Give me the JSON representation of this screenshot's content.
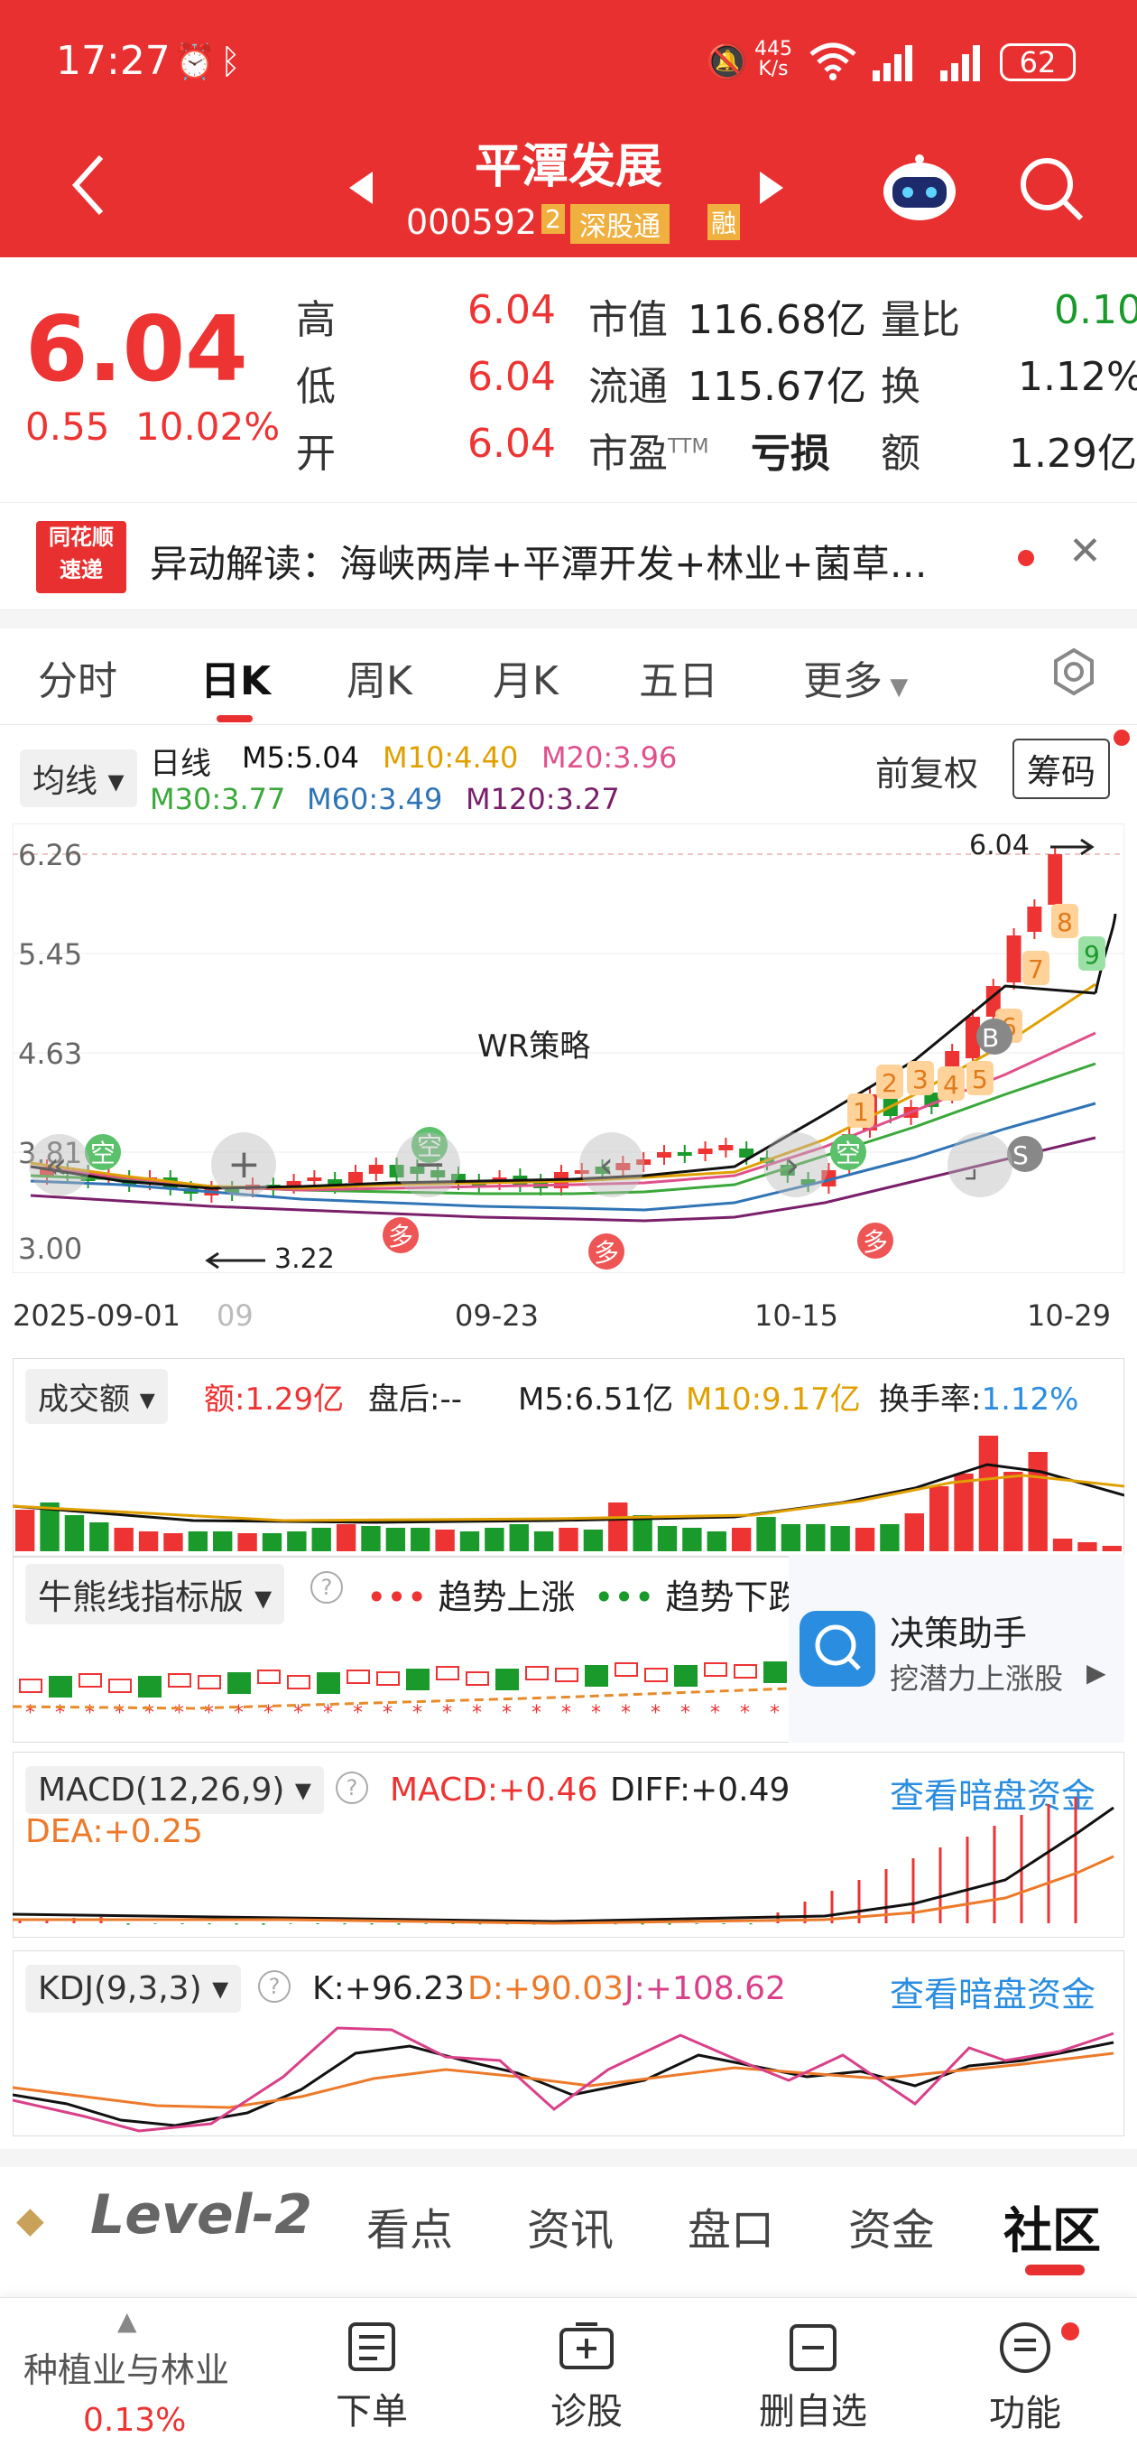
{
  "status_bar": {
    "time": "17:27",
    "speed_top": "445",
    "speed_bottom": "K/s",
    "battery": "62"
  },
  "header": {
    "title": "平潭发展",
    "code": "000592",
    "tag_left": "2",
    "tag": "深股通",
    "tag_right": "融"
  },
  "quote": {
    "price": "6.04",
    "change": "0.55",
    "change_pct": "10.02%",
    "rows": [
      {
        "l1": "高",
        "v1": "6.04",
        "l2": "市值",
        "v2": "116.68亿",
        "l3": "量比",
        "v3": "0.10"
      },
      {
        "l1": "低",
        "v1": "6.04",
        "l2": "流通",
        "v2": "115.67亿",
        "l3": "换",
        "v3": "1.12%"
      },
      {
        "l1": "开",
        "v1": "6.04",
        "l2": "市盈",
        "l2sup": "TTM",
        "v2": "亏损",
        "l3": "额",
        "v3": "1.29亿"
      }
    ]
  },
  "news": {
    "badge_top": "同花顺",
    "badge_bottom": "速递",
    "text": "异动解读：海峡两岸+平潭开发+林业+菌草…"
  },
  "tabs": [
    "分时",
    "日K",
    "周K",
    "月K",
    "五日",
    "更多"
  ],
  "ma": {
    "selector": "均线",
    "label": "日线",
    "m5": "M5:5.04",
    "m10": "M10:4.40",
    "m20": "M20:3.96",
    "m30": "M30:3.77",
    "m60": "M60:3.49",
    "m120": "M120:3.27",
    "adjust": "前复权",
    "chips": "筹码"
  },
  "chart_data": {
    "type": "candlestick",
    "y_ticks": [
      "6.26",
      "5.45",
      "4.63",
      "3.81",
      "3.00"
    ],
    "x_ticks": [
      "2025-09-01",
      "09",
      "09-23",
      "10-15",
      "10-29"
    ],
    "last_price_label": "6.04",
    "low_label": "3.22",
    "strategy_label": "WR策略",
    "signals": [
      "1",
      "2",
      "3",
      "4",
      "5",
      "6",
      "7",
      "8",
      "9"
    ],
    "markers": [
      "空",
      "多",
      "B",
      "S"
    ]
  },
  "volume": {
    "selector": "成交额",
    "amount": "额:1.29亿",
    "after": "盘后:--",
    "m5": "M5:6.51亿",
    "m10": "M10:9.17亿",
    "turnover_label": "换手率:",
    "turnover": "1.12%"
  },
  "bull": {
    "selector": "牛熊线指标版",
    "up": "趋势上涨",
    "down": "趋势下跌",
    "helper_title": "决策助手",
    "helper_sub": "挖潜力上涨股"
  },
  "macd": {
    "selector": "MACD(12,26,9)",
    "macd": "MACD:+0.46",
    "diff": "DIFF:+0.49",
    "dea": "DEA:+0.25",
    "link": "查看暗盘资金"
  },
  "kdj": {
    "selector": "KDJ(9,3,3)",
    "k": "K:+96.23",
    "d": "D:+90.03",
    "j": "J:+108.62",
    "link": "查看暗盘资金"
  },
  "bottom_tabs": {
    "level": "Level-2",
    "items": [
      "看点",
      "资讯",
      "盘口",
      "资金",
      "社区"
    ]
  },
  "nav": {
    "sector": "种植业与林业",
    "sector_pct": "0.13%",
    "items": [
      "下单",
      "诊股",
      "删自选",
      "功能"
    ]
  }
}
